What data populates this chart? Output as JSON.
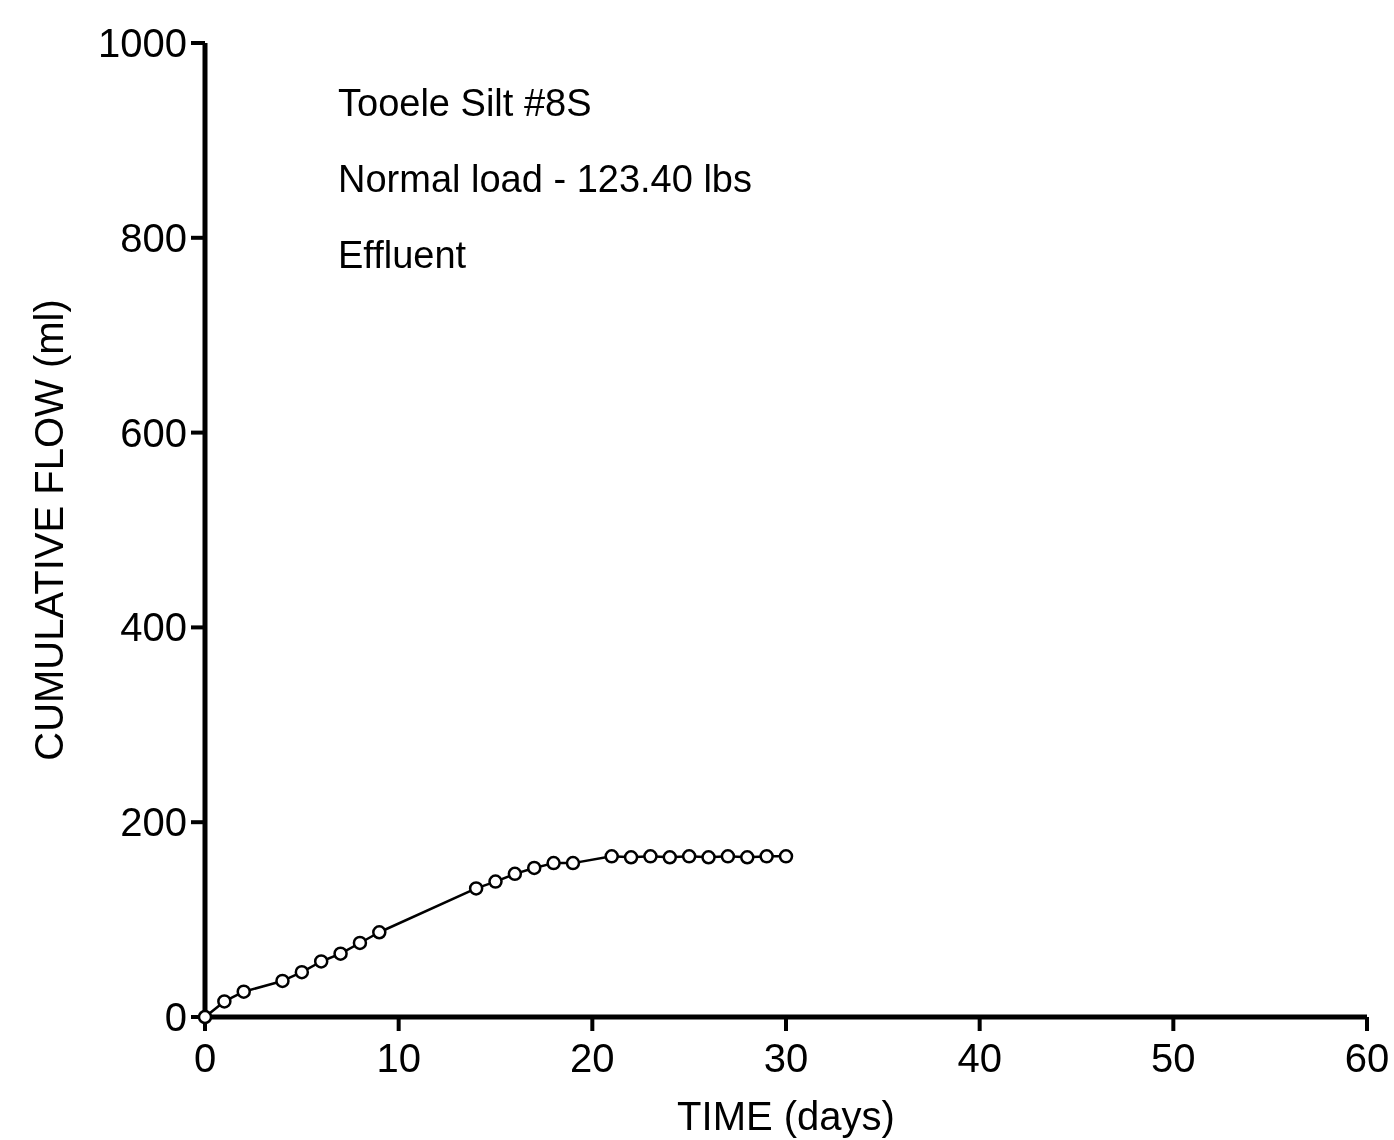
{
  "chart_data": {
    "type": "line",
    "xlabel": "TIME (days)",
    "ylabel": "CUMULATIVE FLOW (ml)",
    "annotations": [
      "Tooele Silt #8S",
      "Normal load - 123.40 lbs",
      "Effluent"
    ],
    "x": [
      0,
      1,
      2,
      4,
      5,
      6,
      7,
      8,
      9,
      14,
      15,
      16,
      17,
      18,
      19,
      21,
      22,
      23,
      24,
      25,
      26,
      27,
      28,
      29,
      30
    ],
    "values": [
      0,
      16,
      26,
      37,
      46,
      57,
      65,
      76,
      87,
      132,
      139,
      147,
      153,
      158,
      158,
      165,
      164,
      165,
      164,
      165,
      164,
      165,
      164,
      165,
      165
    ],
    "color": "#000000",
    "marker": "circle",
    "line_style": "solid",
    "xlim": [
      0,
      60
    ],
    "xticks": [
      0,
      10,
      20,
      30,
      40,
      50,
      60
    ],
    "ylim": [
      0,
      1000
    ],
    "yticks": [
      0,
      200,
      400,
      600,
      800,
      1000
    ],
    "grid": false
  }
}
